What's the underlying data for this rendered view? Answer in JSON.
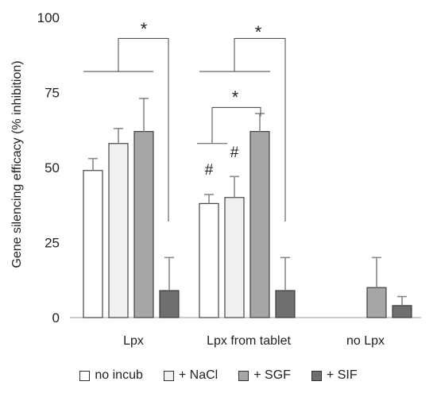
{
  "chart_data": {
    "type": "bar",
    "categories": [
      "Lpx",
      "Lpx from tablet",
      "no Lpx"
    ],
    "ylabel": "Gene silencing efficacy (% inhibition)",
    "ylim": [
      0,
      100
    ],
    "yticks": [
      "0",
      "25",
      "50",
      "75",
      "100"
    ],
    "grid": false,
    "legend_position": "bottom",
    "series": [
      {
        "name": "no incub",
        "color": "#ffffff",
        "values": [
          49,
          38,
          null
        ],
        "errors": [
          4,
          3,
          null
        ]
      },
      {
        "name": "+ NaCl",
        "color": "#f0f0f0",
        "values": [
          58,
          40,
          null
        ],
        "errors": [
          5,
          7,
          null
        ]
      },
      {
        "name": "+ SGF",
        "color": "#a6a6a6",
        "values": [
          62,
          62,
          10
        ],
        "errors": [
          11,
          6,
          10
        ]
      },
      {
        "name": "+ SIF",
        "color": "#6f6f6f",
        "values": [
          9,
          9,
          4
        ],
        "errors": [
          11,
          11,
          3
        ]
      }
    ],
    "annotations": {
      "significance": "*",
      "hash": "#"
    }
  }
}
